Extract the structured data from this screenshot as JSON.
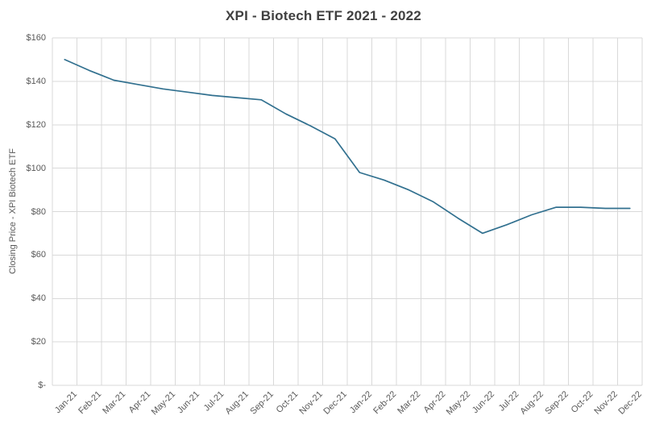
{
  "chart": {
    "title": "XPI - Biotech ETF 2021 - 2022",
    "y_axis_title": "Closing Price - XPI Biotech ETF"
  },
  "chart_data": {
    "type": "line",
    "title": "XPI - Biotech ETF 2021 - 2022",
    "xlabel": "",
    "ylabel": "Closing Price - XPI Biotech ETF",
    "categories": [
      "Jan-21",
      "Feb-21",
      "Mar-21",
      "Apr-21",
      "May-21",
      "Jun-21",
      "Jul-21",
      "Aug-21",
      "Sep-21",
      "Oct-21",
      "Nov-21",
      "Dec-21",
      "Jan-22",
      "Feb-22",
      "Mar-22",
      "Apr-22",
      "May-22",
      "Jun-22",
      "Jul-22",
      "Aug-22",
      "Sep-22",
      "Oct-22",
      "Nov-22",
      "Dec-22"
    ],
    "series": [
      {
        "name": "XPI Biotech ETF",
        "values": [
          150,
          145,
          140.5,
          138.5,
          136.5,
          135,
          133.5,
          132.5,
          131.5,
          125,
          119.5,
          113.5,
          98,
          94.5,
          90,
          84.5,
          77,
          70,
          74,
          78.5,
          82,
          82,
          81.5,
          81.5
        ]
      }
    ],
    "ylim": [
      0,
      160
    ],
    "y_tick_step": 20,
    "y_tick_labels": [
      "$-",
      "$20",
      "$40",
      "$60",
      "$80",
      "$100",
      "$120",
      "$140",
      "$160"
    ],
    "grid": true,
    "legend": false,
    "colors": {
      "line": "#31708F",
      "gridline": "#D9D9D9",
      "title_text": "#404040",
      "axis_text": "#595959",
      "background": "#FFFFFF"
    }
  }
}
